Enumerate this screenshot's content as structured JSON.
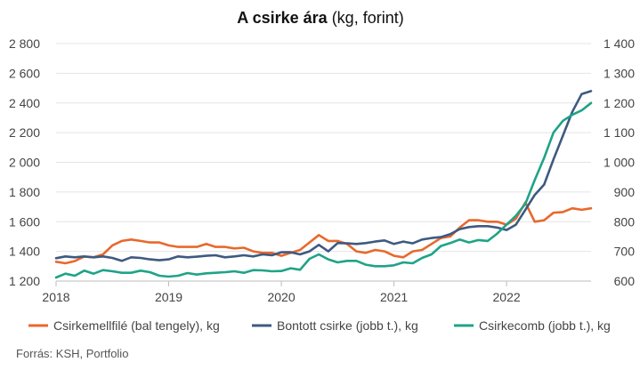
{
  "chart_data": {
    "type": "line",
    "title_bold": "A csirke ára",
    "title_rest": " (kg, forint)",
    "source": "Forrás: KSH, Portfolio",
    "grid": true,
    "legend_position": "bottom",
    "x_tick_labels": [
      "2018",
      "2019",
      "2020",
      "2021",
      "2022"
    ],
    "x_tick_years": [
      2018,
      2019,
      2020,
      2021,
      2022
    ],
    "x_range": [
      2018,
      2022.75
    ],
    "y_left": {
      "range": [
        1200,
        2800
      ],
      "tick_values": [
        1200,
        1400,
        1600,
        1800,
        2000,
        2200,
        2400,
        2600,
        2800
      ],
      "tick_labels": [
        "1 200",
        "1 400",
        "1 600",
        "1 800",
        "2 000",
        "2 200",
        "2 400",
        "2 600",
        "2 800"
      ]
    },
    "y_right": {
      "range": [
        600,
        1400
      ],
      "tick_values": [
        600,
        700,
        800,
        900,
        1000,
        1100,
        1200,
        1300,
        1400
      ],
      "tick_labels": [
        "600",
        "700",
        "800",
        "900",
        "1 000",
        "1 100",
        "1 200",
        "1 300",
        "1 400"
      ]
    },
    "x_start_year": 2018,
    "series": [
      {
        "name": "Csirkemellfilé (bal tengely), kg",
        "axis": "left",
        "color": "#E8692C",
        "values": [
          1330,
          1320,
          1335,
          1365,
          1360,
          1380,
          1440,
          1470,
          1480,
          1470,
          1460,
          1460,
          1440,
          1430,
          1430,
          1430,
          1450,
          1430,
          1430,
          1420,
          1425,
          1400,
          1390,
          1390,
          1370,
          1390,
          1410,
          1460,
          1510,
          1470,
          1470,
          1450,
          1400,
          1390,
          1410,
          1400,
          1370,
          1360,
          1400,
          1410,
          1450,
          1490,
          1500,
          1560,
          1610,
          1610,
          1600,
          1600,
          1580,
          1620,
          1730,
          1600,
          1610,
          1660,
          1665,
          1690,
          1680,
          1690
        ]
      },
      {
        "name": "Bontott csirke (jobb t.), kg",
        "axis": "right",
        "color": "#3E5A80",
        "values": [
          677,
          683,
          680,
          683,
          680,
          683,
          678,
          668,
          680,
          678,
          673,
          670,
          673,
          683,
          680,
          682,
          685,
          687,
          680,
          683,
          687,
          683,
          690,
          687,
          697,
          697,
          690,
          700,
          722,
          700,
          728,
          727,
          725,
          728,
          733,
          737,
          725,
          733,
          727,
          740,
          745,
          748,
          758,
          775,
          782,
          785,
          785,
          780,
          772,
          790,
          840,
          890,
          925,
          1010,
          1090,
          1170,
          1230,
          1240
        ]
      },
      {
        "name": "Csirkecomb (jobb t.), kg",
        "axis": "right",
        "color": "#1FA387",
        "values": [
          612,
          625,
          618,
          635,
          625,
          637,
          633,
          628,
          628,
          635,
          630,
          618,
          615,
          618,
          627,
          622,
          626,
          628,
          630,
          633,
          628,
          637,
          636,
          633,
          634,
          643,
          638,
          675,
          690,
          673,
          663,
          668,
          668,
          655,
          650,
          650,
          653,
          663,
          660,
          678,
          690,
          718,
          728,
          740,
          730,
          738,
          735,
          760,
          790,
          820,
          860,
          940,
          1015,
          1100,
          1140,
          1160,
          1175,
          1200
        ]
      }
    ]
  }
}
